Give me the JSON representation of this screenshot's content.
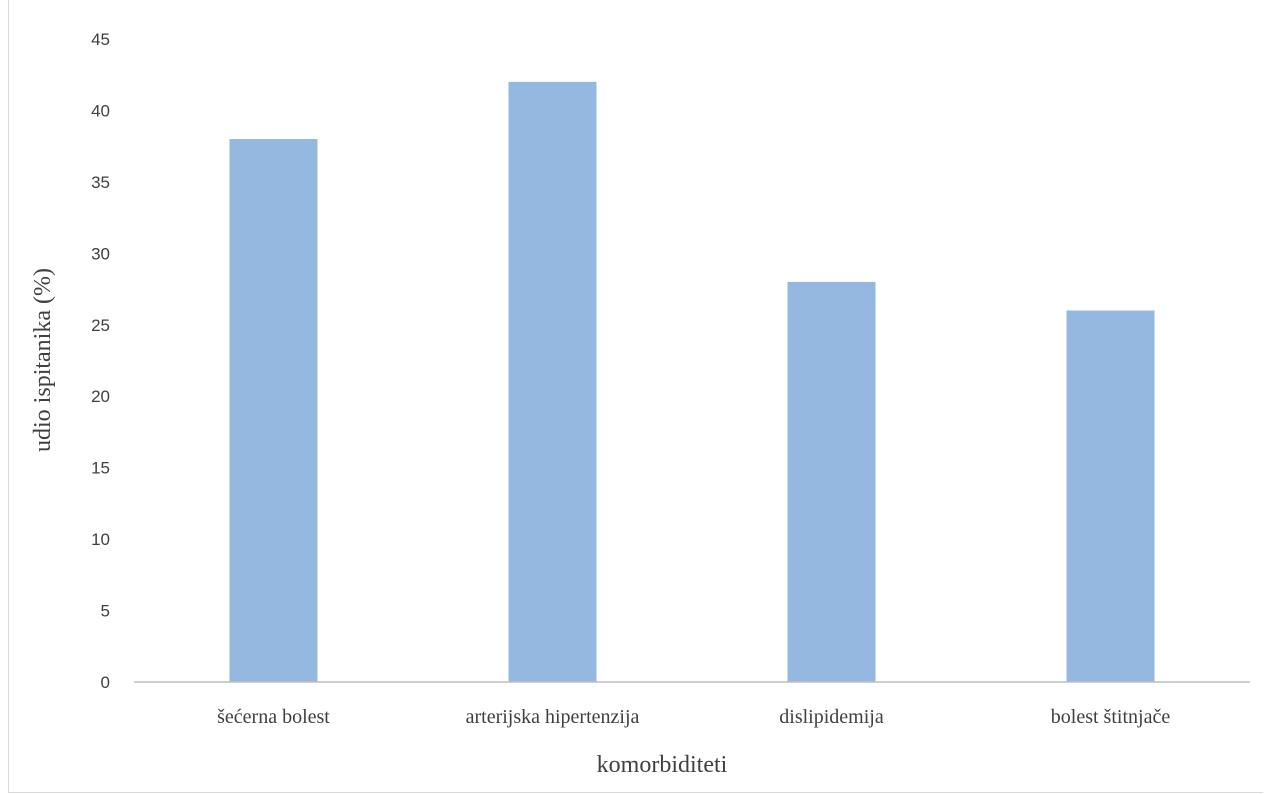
{
  "chart_data": {
    "type": "bar",
    "categories": [
      "šećerna bolest",
      "arterijska hipertenzija",
      "dislipidemija",
      "bolest štitnjače"
    ],
    "values": [
      38,
      42,
      28,
      26
    ],
    "title": "",
    "xlabel": "komorbiditeti",
    "ylabel": "udio ispitanika (%)",
    "ylim": [
      0,
      45
    ],
    "yticks": [
      0,
      5,
      10,
      15,
      20,
      25,
      30,
      35,
      40,
      45
    ],
    "grid": false,
    "legend": "none",
    "bar_color": "#95b8e0",
    "axis_color": "#bfbfbf"
  }
}
